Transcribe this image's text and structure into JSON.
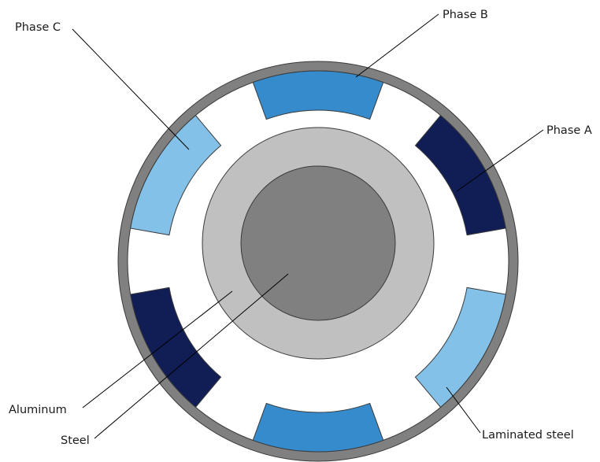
{
  "labels": {
    "phase_a": "Phase A",
    "phase_b": "Phase B",
    "phase_c": "Phase C",
    "aluminum": "Aluminum",
    "steel": "Steel",
    "laminated_steel": "Laminated steel"
  },
  "colors": {
    "laminated_steel": "#808080",
    "gap": "#ffffff",
    "aluminum": "#c0c0c0",
    "steel": "#808080",
    "phase_a": "#101e55",
    "phase_b": "#358bcc",
    "phase_c": "#84c1e8",
    "leader": "#000000"
  }
}
